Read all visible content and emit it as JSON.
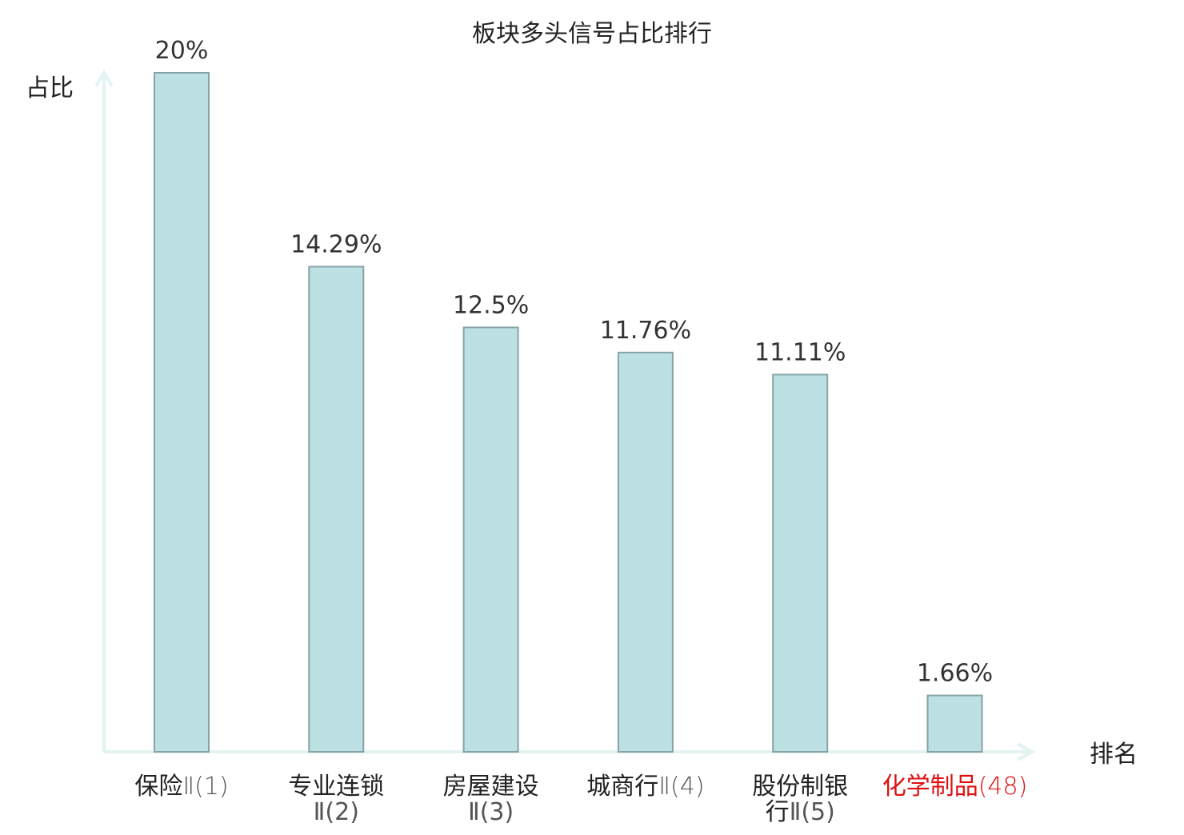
{
  "chart_data": {
    "type": "bar",
    "title": "板块多头信号占比排行",
    "ylabel": "占比",
    "xlabel": "排名",
    "ylim": [
      0,
      20
    ],
    "grid": false,
    "categories": [
      {
        "name_lines": [
          "保险"
        ],
        "rank": "Ⅱ(1)",
        "highlight": false
      },
      {
        "name_lines": [
          "专业连锁"
        ],
        "rank": "Ⅱ(2)",
        "highlight": false
      },
      {
        "name_lines": [
          "房屋建设"
        ],
        "rank": "Ⅱ(3)",
        "highlight": false
      },
      {
        "name_lines": [
          "城商行"
        ],
        "rank": "Ⅱ(4)",
        "highlight": false
      },
      {
        "name_lines": [
          "股份制银",
          "行"
        ],
        "rank": "Ⅱ(5)",
        "highlight": false
      },
      {
        "name_lines": [
          "化学制品"
        ],
        "rank": "(48)",
        "highlight": true
      }
    ],
    "values": [
      20,
      14.29,
      12.5,
      11.76,
      11.11,
      1.66
    ],
    "value_labels": [
      "20%",
      "14.29%",
      "12.5%",
      "11.76%",
      "11.11%",
      "1.66%"
    ]
  },
  "colors": {
    "bar_fill": "#bde0e2",
    "bar_stroke": "#86a3a6",
    "axis": "#e2f3f1",
    "text": "#222222",
    "value_text": "#333333",
    "highlight_text": "#e01010"
  }
}
